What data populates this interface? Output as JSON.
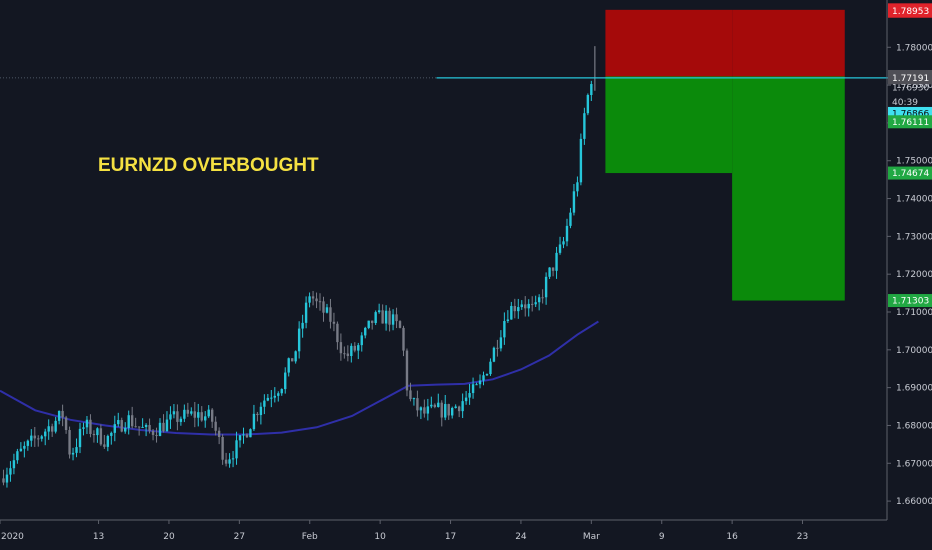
{
  "chart_data": {
    "type": "candlestick",
    "annotation": "EURNZD OVERBOUGHT",
    "colors": {
      "background": "#131722",
      "bull": "#26c6da",
      "bear": "#787b86",
      "ma_line": "#2f2fa8",
      "stop_zone": "#a50a0a",
      "target_zone": "#0b8a0b",
      "entry_line": "#26c6da",
      "annotation": "#f5e142",
      "axis_text": "#c8cbd3"
    },
    "ylim": [
      1.655,
      1.7925
    ],
    "xlim": [
      0,
      126
    ],
    "y_ticks": [
      "1.78000",
      "1.77000",
      "1.76000",
      "1.75000",
      "1.74000",
      "1.73000",
      "1.72000",
      "1.71000",
      "1.70000",
      "1.69000",
      "1.68000",
      "1.67000",
      "1.66000"
    ],
    "x_ticks": [
      {
        "label": "2020",
        "x": 0
      },
      {
        "label": "13",
        "x": 14
      },
      {
        "label": "20",
        "x": 24
      },
      {
        "label": "27",
        "x": 34
      },
      {
        "label": "Feb",
        "x": 44
      },
      {
        "label": "10",
        "x": 54
      },
      {
        "label": "17",
        "x": 64
      },
      {
        "label": "24",
        "x": 74
      },
      {
        "label": "Mar",
        "x": 84
      },
      {
        "label": "9",
        "x": 94
      },
      {
        "label": "16",
        "x": 104
      },
      {
        "label": "23",
        "x": 114
      }
    ],
    "close_path": [
      [
        0,
        1.666
      ],
      [
        3,
        1.673
      ],
      [
        6,
        1.678
      ],
      [
        9,
        1.683
      ],
      [
        10,
        1.672
      ],
      [
        12,
        1.68
      ],
      [
        15,
        1.676
      ],
      [
        18,
        1.682
      ],
      [
        21,
        1.678
      ],
      [
        25,
        1.682
      ],
      [
        28,
        1.683
      ],
      [
        30,
        1.682
      ],
      [
        32,
        1.671
      ],
      [
        34,
        1.675
      ],
      [
        37,
        1.686
      ],
      [
        40,
        1.691
      ],
      [
        42,
        1.7
      ],
      [
        44,
        1.715
      ],
      [
        45,
        1.712
      ],
      [
        47,
        1.708
      ],
      [
        49,
        1.698
      ],
      [
        51,
        1.701
      ],
      [
        53,
        1.708
      ],
      [
        55,
        1.709
      ],
      [
        57,
        1.705
      ],
      [
        58,
        1.687
      ],
      [
        60,
        1.683
      ],
      [
        62,
        1.684
      ],
      [
        64,
        1.684
      ],
      [
        66,
        1.687
      ],
      [
        68,
        1.69
      ],
      [
        70,
        1.699
      ],
      [
        72,
        1.71
      ],
      [
        74,
        1.713
      ],
      [
        76,
        1.71
      ],
      [
        78,
        1.72
      ],
      [
        80,
        1.728
      ],
      [
        82,
        1.745
      ],
      [
        83,
        1.762
      ],
      [
        84,
        1.772
      ]
    ],
    "moving_average": [
      [
        0,
        1.6892
      ],
      [
        5,
        1.684
      ],
      [
        10,
        1.6815
      ],
      [
        15,
        1.68
      ],
      [
        20,
        1.6788
      ],
      [
        25,
        1.678
      ],
      [
        30,
        1.6776
      ],
      [
        35,
        1.6776
      ],
      [
        40,
        1.6781
      ],
      [
        45,
        1.6795
      ],
      [
        50,
        1.6825
      ],
      [
        55,
        1.6875
      ],
      [
        58,
        1.6905
      ],
      [
        62,
        1.6908
      ],
      [
        66,
        1.691
      ],
      [
        70,
        1.6922
      ],
      [
        74,
        1.6948
      ],
      [
        78,
        1.6985
      ],
      [
        82,
        1.704
      ],
      [
        85,
        1.7075
      ]
    ],
    "stop_zones": [
      {
        "x0": 86,
        "x1": 104,
        "y0": 1.77228,
        "y1": 1.7899
      },
      {
        "x0": 104,
        "x1": 120,
        "y0": 1.77228,
        "y1": 1.7899
      }
    ],
    "target_zones": [
      {
        "x0": 86,
        "x1": 104,
        "y0": 1.74674,
        "y1": 1.77228
      },
      {
        "x0": 104,
        "x1": 120,
        "y0": 1.71303,
        "y1": 1.77228
      }
    ],
    "entry_line": {
      "x0": 62,
      "x1": 127,
      "y": 1.77191
    },
    "price_tags": [
      {
        "label": "1.78990",
        "value": 1.7899,
        "bg": "#e0232b",
        "fg": "#ffffff"
      },
      {
        "label": "1.78953",
        "value": 1.78953,
        "bg": "#e0232b",
        "fg": "#ffffff"
      },
      {
        "label": "1.77228",
        "value": 1.77228,
        "bg": "#4f4f56",
        "fg": "#ffffff"
      },
      {
        "label": "1.77191",
        "value": 1.77191,
        "bg": "#4f4f56",
        "fg": "#ffffff"
      },
      {
        "label": "1.76930",
        "value": 1.7693,
        "bg": "#131722",
        "fg": "#c8cbd3"
      },
      {
        "label": "40:39",
        "value": 1.7655,
        "bg": "#131722",
        "fg": "#c8cbd3"
      },
      {
        "label": "1.76866",
        "value": 1.7625,
        "bg": "#3fe0f0",
        "fg": "#0a0a0a"
      },
      {
        "label": "1.76111",
        "value": 1.7603,
        "bg": "#21a843",
        "fg": "#ffffff"
      },
      {
        "label": "1.74674",
        "value": 1.74674,
        "bg": "#21a843",
        "fg": "#ffffff"
      },
      {
        "label": "1.71303",
        "value": 1.71303,
        "bg": "#21a843",
        "fg": "#ffffff"
      }
    ]
  }
}
